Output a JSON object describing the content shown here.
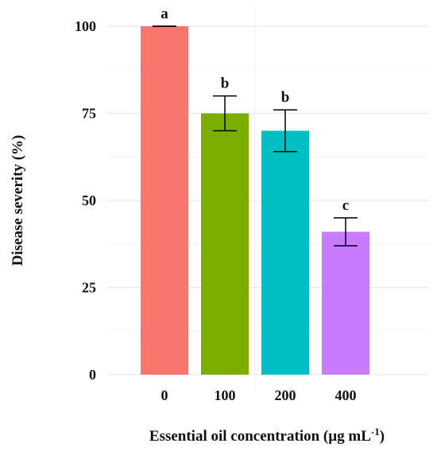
{
  "chart_data": {
    "type": "bar",
    "categories": [
      "0",
      "100",
      "200",
      "400"
    ],
    "values": [
      100,
      75,
      70,
      41
    ],
    "errors": [
      0,
      5,
      6,
      4
    ],
    "significance_letters": [
      "a",
      "b",
      "b",
      "c"
    ],
    "colors": [
      "#F8766D",
      "#7CAE00",
      "#00BFC4",
      "#C77CFF"
    ],
    "ylabel": "Disease severity (%)",
    "xlabel": "Essential oil concentration (µg mL",
    "xlabel_superscript": "-1",
    "xlabel_suffix": ")",
    "yticks": [
      0,
      25,
      50,
      75,
      100
    ],
    "ylim": [
      0,
      100
    ],
    "grid": true,
    "legend": "none"
  }
}
